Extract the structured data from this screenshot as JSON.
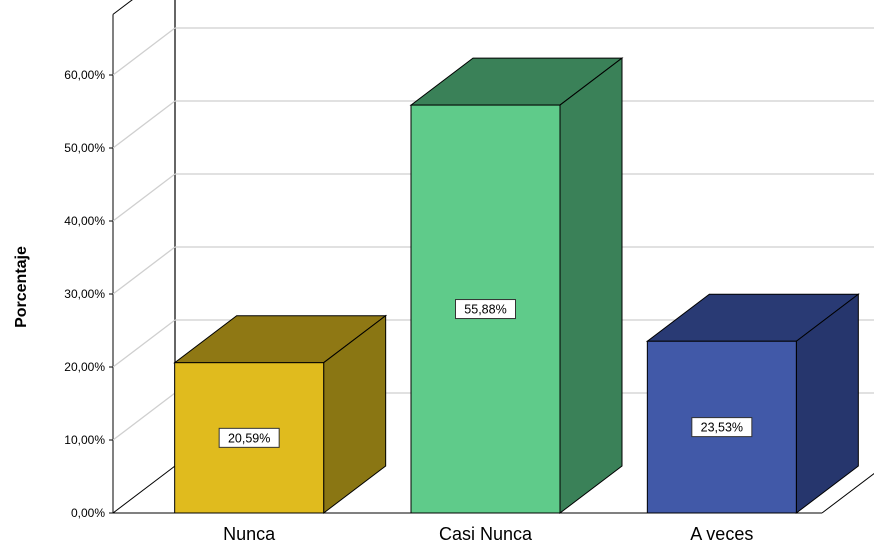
{
  "chart_data": {
    "type": "bar",
    "ylabel": "Porcentaje",
    "categories": [
      "Nunca",
      "Casi Nunca",
      "A veces"
    ],
    "values": [
      20.59,
      55.88,
      23.53
    ],
    "data_labels": [
      "20,59%",
      "55,88%",
      "23,53%"
    ],
    "ylim": [
      0,
      60
    ],
    "yticks": [
      0,
      10,
      20,
      30,
      40,
      50,
      60
    ],
    "ytick_labels": [
      "0,00%",
      "10,00%",
      "20,00%",
      "30,00%",
      "40,00%",
      "50,00%",
      "60,00%"
    ],
    "grid": true,
    "style": "3d",
    "colors": [
      {
        "front": "#e0bb1e",
        "top": "#8f7814",
        "side": "#8a7613"
      },
      {
        "front": "#5fcb8a",
        "top": "#3a8158",
        "side": "#3a8158"
      },
      {
        "front": "#4159a8",
        "top": "#293a74",
        "side": "#26366d"
      }
    ]
  }
}
